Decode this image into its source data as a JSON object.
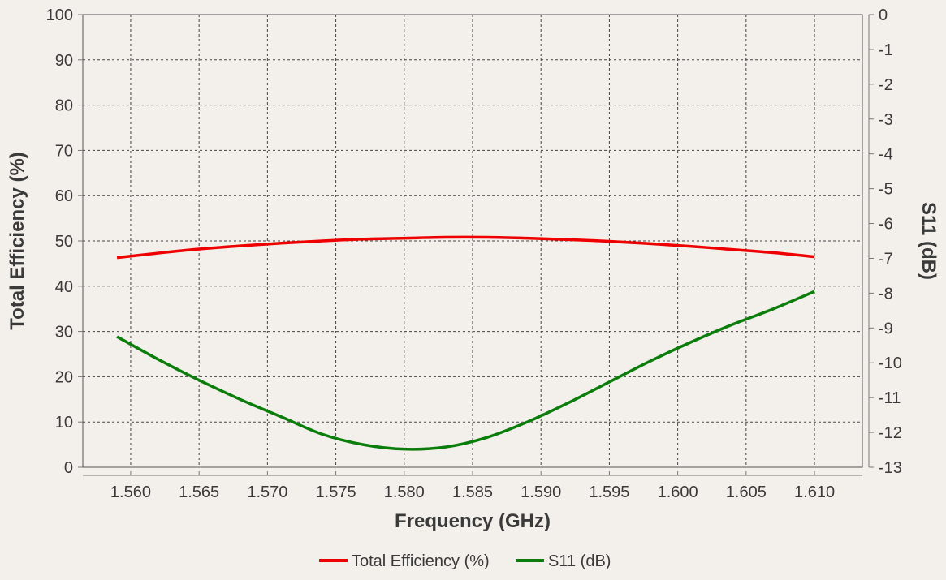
{
  "chart_data": {
    "type": "line",
    "title": "",
    "xlabel": "Frequency (GHz)",
    "ylabel": "Total Efficiency (%)",
    "y2label": "S11 (dB)",
    "xlim": [
      1.5565,
      1.6135
    ],
    "ylim": [
      0,
      100
    ],
    "y2lim": [
      -13,
      0
    ],
    "x_ticks": [
      1.56,
      1.565,
      1.57,
      1.575,
      1.58,
      1.585,
      1.59,
      1.595,
      1.6,
      1.605,
      1.61
    ],
    "x_tick_labels": [
      "1.560",
      "1.565",
      "1.570",
      "1.575",
      "1.580",
      "1.585",
      "1.590",
      "1.595",
      "1.600",
      "1.605",
      "1.610"
    ],
    "y_ticks": [
      0,
      10,
      20,
      30,
      40,
      50,
      60,
      70,
      80,
      90,
      100
    ],
    "y_tick_labels": [
      "0",
      "10",
      "20",
      "30",
      "40",
      "50",
      "60",
      "70",
      "80",
      "90",
      "100"
    ],
    "y2_ticks": [
      0,
      -1,
      -2,
      -3,
      -4,
      -5,
      -6,
      -7,
      -8,
      -9,
      -10,
      -11,
      -12,
      -13
    ],
    "y2_tick_labels": [
      "0",
      "-1",
      "-2",
      "-3",
      "-4",
      "-5",
      "-6",
      "-7",
      "-8",
      "-9",
      "-10",
      "-11",
      "-12",
      "-13"
    ],
    "grid": true,
    "legend_position": "bottom-center",
    "series": [
      {
        "name": "Total Efficiency (%)",
        "axis": "left",
        "color": "#ee0000",
        "x": [
          1.559,
          1.562,
          1.565,
          1.568,
          1.571,
          1.574,
          1.577,
          1.58,
          1.583,
          1.586,
          1.589,
          1.592,
          1.595,
          1.598,
          1.601,
          1.604,
          1.607,
          1.61
        ],
        "y": [
          46.3,
          47.3,
          48.2,
          48.9,
          49.5,
          50.0,
          50.4,
          50.6,
          50.8,
          50.8,
          50.6,
          50.3,
          49.9,
          49.4,
          48.8,
          48.1,
          47.4,
          46.5
        ]
      },
      {
        "name": "S11 (dB)",
        "axis": "right",
        "color": "#0a7d0a",
        "x": [
          1.559,
          1.562,
          1.565,
          1.568,
          1.571,
          1.574,
          1.577,
          1.58,
          1.583,
          1.586,
          1.589,
          1.592,
          1.595,
          1.598,
          1.601,
          1.604,
          1.607,
          1.61
        ],
        "y": [
          -9.25,
          -9.9,
          -10.5,
          -11.05,
          -11.55,
          -12.05,
          -12.35,
          -12.48,
          -12.42,
          -12.15,
          -11.7,
          -11.15,
          -10.55,
          -9.95,
          -9.4,
          -8.9,
          -8.45,
          -7.95
        ]
      }
    ]
  }
}
